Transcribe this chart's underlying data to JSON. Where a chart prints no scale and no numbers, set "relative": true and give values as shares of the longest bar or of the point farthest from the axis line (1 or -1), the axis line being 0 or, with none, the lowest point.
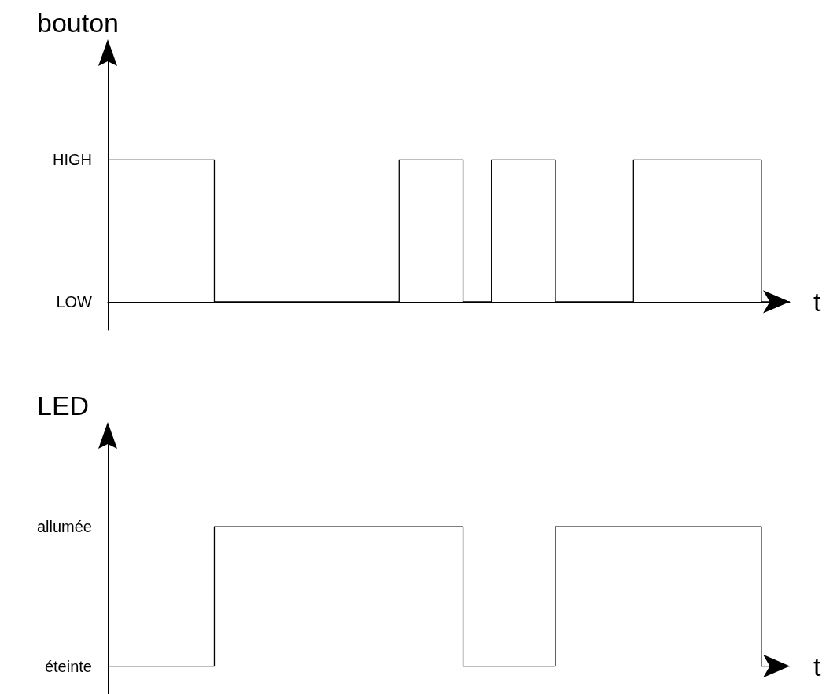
{
  "chart_data": [
    {
      "type": "step",
      "xlabel": "t",
      "ylabel": "bouton",
      "categories": [
        null,
        null,
        null,
        null,
        null,
        null,
        null,
        null,
        null,
        null,
        null,
        null,
        null,
        null,
        null,
        null,
        null,
        null,
        null,
        null,
        null,
        null,
        null,
        null,
        null,
        null,
        null,
        null,
        null,
        null,
        null,
        null,
        null,
        null,
        null,
        null,
        null,
        null,
        null,
        null,
        null,
        null,
        null,
        null,
        null,
        null,
        null,
        null,
        null,
        null,
        null,
        null,
        null,
        null,
        null,
        null,
        null,
        null,
        null,
        null,
        null,
        null,
        null,
        null,
        null,
        null,
        null,
        null,
        null,
        null,
        null,
        null,
        null,
        null,
        null,
        null,
        null,
        null,
        null,
        null,
        null,
        null,
        null,
        null,
        null,
        null,
        null,
        null,
        null,
        null,
        null,
        null,
        null,
        null,
        null,
        null,
        null
      ],
      "values": [
        1,
        1,
        1,
        1,
        1,
        1,
        1,
        1,
        1,
        1,
        1,
        1,
        1,
        1,
        1,
        0,
        0,
        0,
        0,
        0,
        0,
        0,
        0,
        0,
        0,
        0,
        0,
        0,
        0,
        0,
        0,
        0,
        0,
        0,
        0,
        0,
        0,
        0,
        0,
        0,
        0,
        1,
        1,
        1,
        1,
        1,
        1,
        1,
        1,
        1,
        0,
        0,
        0,
        0,
        1,
        1,
        1,
        1,
        1,
        1,
        1,
        1,
        1,
        0,
        0,
        0,
        0,
        0,
        0,
        0,
        0,
        0,
        0,
        0,
        1,
        1,
        1,
        1,
        1,
        1,
        1,
        1,
        1,
        1,
        1,
        1,
        1,
        1,
        1,
        1,
        1,
        1,
        0,
        0,
        0,
        0,
        0
      ],
      "color": "#000000",
      "relative": true,
      "annotations": [
        "LOW",
        "HIGH"
      ],
      "tick_labels": false,
      "grid": false,
      "line_style": "solid"
    },
    {
      "type": "step",
      "xlabel": "t",
      "ylabel": "LED",
      "categories": [
        null,
        null,
        null,
        null,
        null,
        null,
        null,
        null,
        null,
        null,
        null,
        null,
        null,
        null,
        null,
        null,
        null,
        null,
        null,
        null,
        null,
        null,
        null,
        null,
        null,
        null,
        null,
        null,
        null,
        null,
        null,
        null,
        null,
        null,
        null,
        null,
        null,
        null,
        null,
        null,
        null,
        null,
        null,
        null,
        null,
        null,
        null,
        null,
        null,
        null,
        null,
        null,
        null,
        null,
        null,
        null,
        null,
        null,
        null,
        null,
        null,
        null,
        null,
        null,
        null,
        null,
        null,
        null,
        null,
        null,
        null,
        null,
        null,
        null,
        null,
        null,
        null,
        null,
        null,
        null,
        null,
        null,
        null,
        null,
        null,
        null,
        null,
        null,
        null,
        null,
        null,
        null,
        null,
        null,
        null,
        null,
        null
      ],
      "values": [
        0,
        0,
        0,
        0,
        0,
        0,
        0,
        0,
        0,
        0,
        0,
        0,
        0,
        0,
        0,
        1,
        1,
        1,
        1,
        1,
        1,
        1,
        1,
        1,
        1,
        1,
        1,
        1,
        1,
        1,
        1,
        1,
        1,
        1,
        1,
        1,
        1,
        1,
        1,
        1,
        1,
        1,
        1,
        1,
        1,
        1,
        1,
        1,
        1,
        1,
        0,
        0,
        0,
        0,
        0,
        0,
        0,
        0,
        0,
        0,
        0,
        0,
        0,
        1,
        1,
        1,
        1,
        1,
        1,
        1,
        1,
        1,
        1,
        1,
        1,
        1,
        1,
        1,
        1,
        1,
        1,
        1,
        1,
        1,
        1,
        1,
        1,
        1,
        1,
        1,
        1,
        1,
        0,
        0,
        0,
        0,
        0
      ],
      "color": "#000000",
      "relative": true,
      "annotations": [
        "éteinte",
        "allumée"
      ],
      "tick_labels": false,
      "grid": false,
      "line_style": "solid"
    }
  ]
}
